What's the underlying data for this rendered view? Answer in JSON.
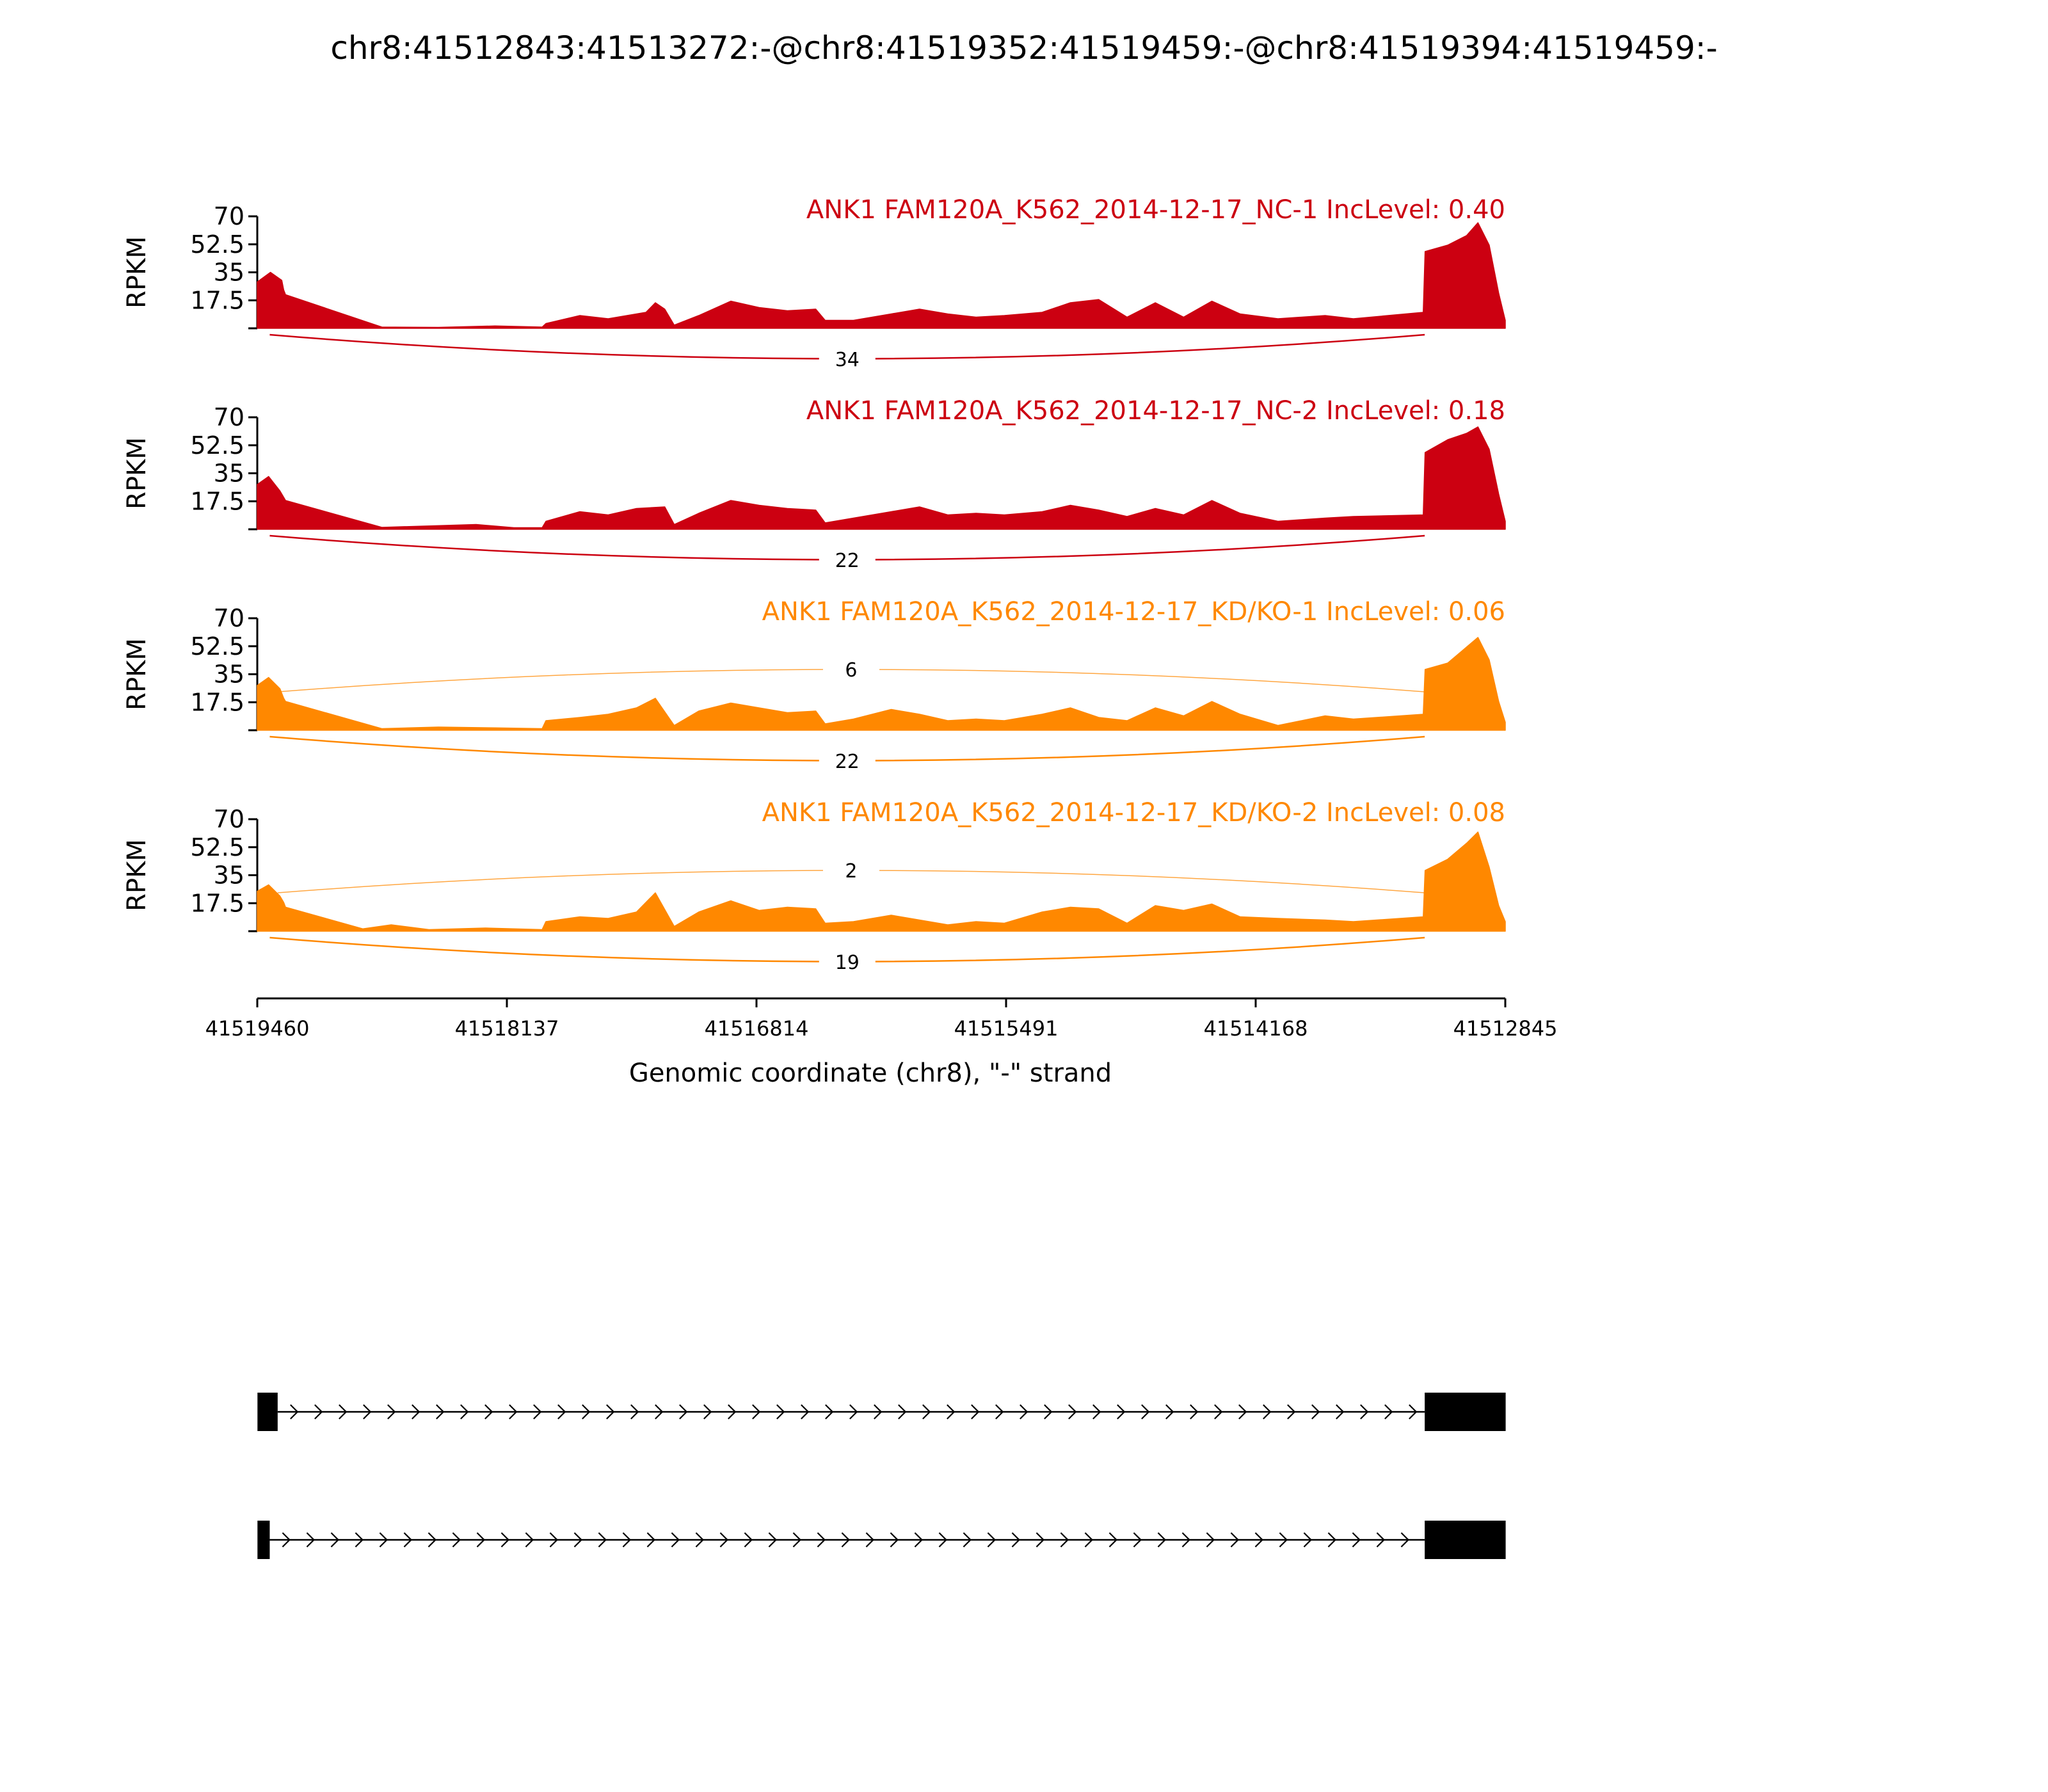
{
  "figure": {
    "title": "chr8:41512843:41513272:-@chr8:41519352:41519459:-@chr8:41519394:41519459:-",
    "x_axis_label": "Genomic coordinate (chr8), \"-\" strand",
    "y_axis_label": "RPKM",
    "colors": {
      "nc": "#cc0011",
      "kd": "#ff8800",
      "axis": "#000000"
    }
  },
  "chart_data": {
    "type": "area",
    "title": "chr8:41512843:41513272:-@chr8:41519352:41519459:-@chr8:41519394:41519459:-",
    "xlabel": "Genomic coordinate (chr8), \"-\" strand",
    "ylabel": "RPKM",
    "xlim": [
      41519460,
      41512845
    ],
    "x_ticks": [
      "41519460",
      "41518137",
      "41516814",
      "41515491",
      "41514168",
      "41512845"
    ],
    "ylim": [
      0,
      70
    ],
    "y_ticks": [
      "70",
      "52.5",
      "35",
      "17.5"
    ],
    "grid": false,
    "tracks": [
      {
        "label": "ANK1 FAM120A_K562_2014-12-17_NC-1 IncLevel: 0.40",
        "color": "#cc0011",
        "coverage": [
          {
            "x": 41519460,
            "y": 29
          },
          {
            "x": 41519390,
            "y": 35
          },
          {
            "x": 41519330,
            "y": 30
          },
          {
            "x": 41519320,
            "y": 24
          },
          {
            "x": 41519310,
            "y": 21
          },
          {
            "x": 41518800,
            "y": 0.8
          },
          {
            "x": 41518500,
            "y": 0.6
          },
          {
            "x": 41518200,
            "y": 1.5
          },
          {
            "x": 41517950,
            "y": 0.8
          },
          {
            "x": 41517930,
            "y": 3
          },
          {
            "x": 41517750,
            "y": 8
          },
          {
            "x": 41517600,
            "y": 6
          },
          {
            "x": 41517400,
            "y": 10
          },
          {
            "x": 41517350,
            "y": 16
          },
          {
            "x": 41517300,
            "y": 12
          },
          {
            "x": 41517250,
            "y": 2
          },
          {
            "x": 41517120,
            "y": 8
          },
          {
            "x": 41516950,
            "y": 17
          },
          {
            "x": 41516800,
            "y": 13
          },
          {
            "x": 41516650,
            "y": 11
          },
          {
            "x": 41516500,
            "y": 12
          },
          {
            "x": 41516450,
            "y": 5
          },
          {
            "x": 41516300,
            "y": 5
          },
          {
            "x": 41516100,
            "y": 9
          },
          {
            "x": 41515950,
            "y": 12
          },
          {
            "x": 41515800,
            "y": 9
          },
          {
            "x": 41515650,
            "y": 7
          },
          {
            "x": 41515500,
            "y": 8
          },
          {
            "x": 41515300,
            "y": 10
          },
          {
            "x": 41515150,
            "y": 16
          },
          {
            "x": 41515000,
            "y": 18
          },
          {
            "x": 41514850,
            "y": 7
          },
          {
            "x": 41514700,
            "y": 16
          },
          {
            "x": 41514550,
            "y": 7
          },
          {
            "x": 41514400,
            "y": 17
          },
          {
            "x": 41514250,
            "y": 9
          },
          {
            "x": 41514050,
            "y": 6
          },
          {
            "x": 41513800,
            "y": 8
          },
          {
            "x": 41513650,
            "y": 6
          },
          {
            "x": 41513280,
            "y": 10
          },
          {
            "x": 41513270,
            "y": 48
          },
          {
            "x": 41513150,
            "y": 52
          },
          {
            "x": 41513050,
            "y": 58
          },
          {
            "x": 41512990,
            "y": 66
          },
          {
            "x": 41512930,
            "y": 52
          },
          {
            "x": 41512880,
            "y": 22
          },
          {
            "x": 41512845,
            "y": 5
          }
        ],
        "junctions": [
          {
            "from": 41519394,
            "to": 41513272,
            "count": "34",
            "side": "below"
          }
        ]
      },
      {
        "label": "ANK1 FAM120A_K562_2014-12-17_NC-2 IncLevel: 0.18",
        "color": "#cc0011",
        "coverage": [
          {
            "x": 41519460,
            "y": 28
          },
          {
            "x": 41519400,
            "y": 33
          },
          {
            "x": 41519340,
            "y": 24
          },
          {
            "x": 41519320,
            "y": 20
          },
          {
            "x": 41519310,
            "y": 18
          },
          {
            "x": 41518800,
            "y": 1.2
          },
          {
            "x": 41518300,
            "y": 3
          },
          {
            "x": 41518100,
            "y": 1
          },
          {
            "x": 41517950,
            "y": 1
          },
          {
            "x": 41517930,
            "y": 5
          },
          {
            "x": 41517750,
            "y": 11
          },
          {
            "x": 41517600,
            "y": 9
          },
          {
            "x": 41517450,
            "y": 13
          },
          {
            "x": 41517300,
            "y": 14
          },
          {
            "x": 41517250,
            "y": 3
          },
          {
            "x": 41517120,
            "y": 10
          },
          {
            "x": 41516950,
            "y": 18
          },
          {
            "x": 41516800,
            "y": 15
          },
          {
            "x": 41516650,
            "y": 13
          },
          {
            "x": 41516500,
            "y": 12
          },
          {
            "x": 41516450,
            "y": 4
          },
          {
            "x": 41516300,
            "y": 7
          },
          {
            "x": 41516100,
            "y": 11
          },
          {
            "x": 41515950,
            "y": 14
          },
          {
            "x": 41515800,
            "y": 9
          },
          {
            "x": 41515650,
            "y": 10
          },
          {
            "x": 41515500,
            "y": 9
          },
          {
            "x": 41515300,
            "y": 11
          },
          {
            "x": 41515150,
            "y": 15
          },
          {
            "x": 41515000,
            "y": 12
          },
          {
            "x": 41514850,
            "y": 8
          },
          {
            "x": 41514700,
            "y": 13
          },
          {
            "x": 41514550,
            "y": 9
          },
          {
            "x": 41514400,
            "y": 18
          },
          {
            "x": 41514250,
            "y": 10
          },
          {
            "x": 41514050,
            "y": 5
          },
          {
            "x": 41513800,
            "y": 7
          },
          {
            "x": 41513650,
            "y": 8
          },
          {
            "x": 41513280,
            "y": 9
          },
          {
            "x": 41513270,
            "y": 48
          },
          {
            "x": 41513150,
            "y": 56
          },
          {
            "x": 41513050,
            "y": 60
          },
          {
            "x": 41512990,
            "y": 64
          },
          {
            "x": 41512930,
            "y": 50
          },
          {
            "x": 41512880,
            "y": 22
          },
          {
            "x": 41512845,
            "y": 5
          }
        ],
        "junctions": [
          {
            "from": 41519394,
            "to": 41513272,
            "count": "22",
            "side": "below"
          }
        ]
      },
      {
        "label": "ANK1 FAM120A_K562_2014-12-17_KD/KO-1 IncLevel: 0.06",
        "color": "#ff8800",
        "coverage": [
          {
            "x": 41519460,
            "y": 28
          },
          {
            "x": 41519400,
            "y": 33
          },
          {
            "x": 41519340,
            "y": 26
          },
          {
            "x": 41519320,
            "y": 20
          },
          {
            "x": 41519310,
            "y": 18
          },
          {
            "x": 41518800,
            "y": 1
          },
          {
            "x": 41518500,
            "y": 2
          },
          {
            "x": 41518200,
            "y": 1.5
          },
          {
            "x": 41517950,
            "y": 1
          },
          {
            "x": 41517930,
            "y": 6
          },
          {
            "x": 41517750,
            "y": 8
          },
          {
            "x": 41517600,
            "y": 10
          },
          {
            "x": 41517450,
            "y": 14
          },
          {
            "x": 41517350,
            "y": 20
          },
          {
            "x": 41517250,
            "y": 3
          },
          {
            "x": 41517120,
            "y": 12
          },
          {
            "x": 41516950,
            "y": 17
          },
          {
            "x": 41516800,
            "y": 14
          },
          {
            "x": 41516650,
            "y": 11
          },
          {
            "x": 41516500,
            "y": 12
          },
          {
            "x": 41516450,
            "y": 4
          },
          {
            "x": 41516300,
            "y": 7
          },
          {
            "x": 41516100,
            "y": 13
          },
          {
            "x": 41515950,
            "y": 10
          },
          {
            "x": 41515800,
            "y": 6
          },
          {
            "x": 41515650,
            "y": 7
          },
          {
            "x": 41515500,
            "y": 6
          },
          {
            "x": 41515300,
            "y": 10
          },
          {
            "x": 41515150,
            "y": 14
          },
          {
            "x": 41515000,
            "y": 8
          },
          {
            "x": 41514850,
            "y": 6
          },
          {
            "x": 41514700,
            "y": 14
          },
          {
            "x": 41514550,
            "y": 9
          },
          {
            "x": 41514400,
            "y": 18
          },
          {
            "x": 41514250,
            "y": 10
          },
          {
            "x": 41514050,
            "y": 3
          },
          {
            "x": 41513800,
            "y": 9
          },
          {
            "x": 41513650,
            "y": 7
          },
          {
            "x": 41513280,
            "y": 10
          },
          {
            "x": 41513270,
            "y": 38
          },
          {
            "x": 41513150,
            "y": 42
          },
          {
            "x": 41513050,
            "y": 52
          },
          {
            "x": 41512990,
            "y": 58
          },
          {
            "x": 41512930,
            "y": 44
          },
          {
            "x": 41512880,
            "y": 18
          },
          {
            "x": 41512845,
            "y": 5
          }
        ],
        "junctions": [
          {
            "from": 41519394,
            "to": 41513272,
            "count": "22",
            "side": "below"
          },
          {
            "from": 41519352,
            "to": 41513272,
            "count": "6",
            "side": "above"
          }
        ]
      },
      {
        "label": "ANK1 FAM120A_K562_2014-12-17_KD/KO-2 IncLevel: 0.08",
        "color": "#ff8800",
        "coverage": [
          {
            "x": 41519460,
            "y": 25
          },
          {
            "x": 41519400,
            "y": 29
          },
          {
            "x": 41519340,
            "y": 22
          },
          {
            "x": 41519320,
            "y": 18
          },
          {
            "x": 41519310,
            "y": 15
          },
          {
            "x": 41518900,
            "y": 1.5
          },
          {
            "x": 41518750,
            "y": 4
          },
          {
            "x": 41518550,
            "y": 1
          },
          {
            "x": 41518250,
            "y": 2
          },
          {
            "x": 41517950,
            "y": 1
          },
          {
            "x": 41517930,
            "y": 6
          },
          {
            "x": 41517750,
            "y": 9
          },
          {
            "x": 41517600,
            "y": 8
          },
          {
            "x": 41517450,
            "y": 12
          },
          {
            "x": 41517350,
            "y": 24
          },
          {
            "x": 41517250,
            "y": 3
          },
          {
            "x": 41517120,
            "y": 12
          },
          {
            "x": 41516950,
            "y": 19
          },
          {
            "x": 41516800,
            "y": 13
          },
          {
            "x": 41516650,
            "y": 15
          },
          {
            "x": 41516500,
            "y": 14
          },
          {
            "x": 41516450,
            "y": 5
          },
          {
            "x": 41516300,
            "y": 6
          },
          {
            "x": 41516100,
            "y": 10
          },
          {
            "x": 41515950,
            "y": 7
          },
          {
            "x": 41515800,
            "y": 4
          },
          {
            "x": 41515650,
            "y": 6
          },
          {
            "x": 41515500,
            "y": 5
          },
          {
            "x": 41515300,
            "y": 12
          },
          {
            "x": 41515150,
            "y": 15
          },
          {
            "x": 41515000,
            "y": 14
          },
          {
            "x": 41514850,
            "y": 5
          },
          {
            "x": 41514700,
            "y": 16
          },
          {
            "x": 41514550,
            "y": 13
          },
          {
            "x": 41514400,
            "y": 17
          },
          {
            "x": 41514250,
            "y": 9
          },
          {
            "x": 41514050,
            "y": 8
          },
          {
            "x": 41513800,
            "y": 7
          },
          {
            "x": 41513650,
            "y": 6
          },
          {
            "x": 41513280,
            "y": 9
          },
          {
            "x": 41513270,
            "y": 38
          },
          {
            "x": 41513150,
            "y": 45
          },
          {
            "x": 41513050,
            "y": 55
          },
          {
            "x": 41512990,
            "y": 62
          },
          {
            "x": 41512930,
            "y": 40
          },
          {
            "x": 41512880,
            "y": 16
          },
          {
            "x": 41512845,
            "y": 6
          }
        ],
        "junctions": [
          {
            "from": 41519394,
            "to": 41513272,
            "count": "19",
            "side": "below"
          },
          {
            "from": 41519352,
            "to": 41513272,
            "count": "2",
            "side": "above"
          }
        ]
      }
    ],
    "isoforms": [
      {
        "exons": [
          [
            41519459,
            41519352
          ],
          [
            41513272,
            41512843
          ]
        ]
      },
      {
        "exons": [
          [
            41519459,
            41519394
          ],
          [
            41513272,
            41512843
          ]
        ]
      }
    ]
  }
}
